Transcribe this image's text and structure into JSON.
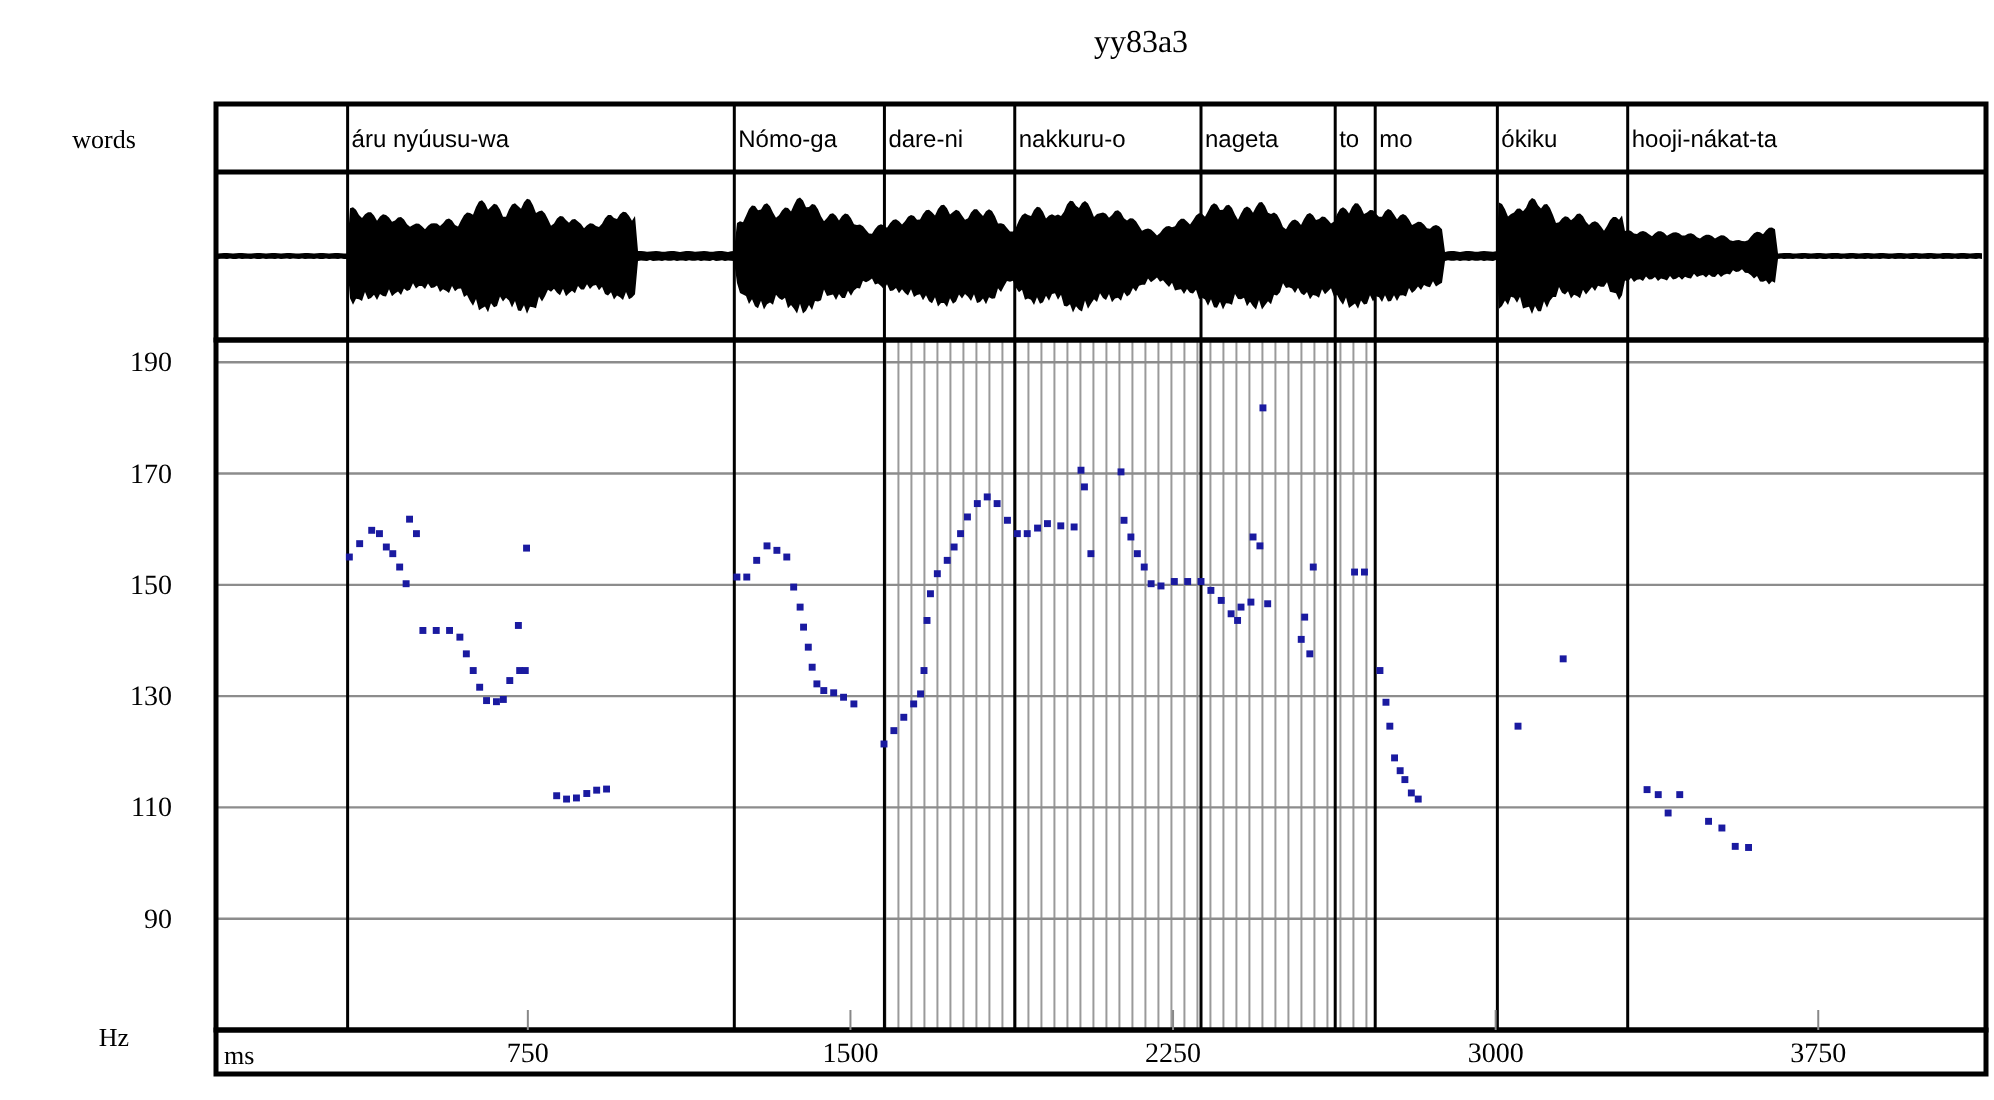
{
  "chart_data": {
    "type": "scatter",
    "title": "yy83a3",
    "xlabel": "ms",
    "ylabel": "Hz",
    "annotations": [
      "words"
    ],
    "xlim": [
      25,
      4140
    ],
    "ylim": [
      70,
      194
    ],
    "xticks": [
      750,
      1500,
      2250,
      3000,
      3750
    ],
    "yticks": [
      90,
      110,
      130,
      150,
      170,
      190
    ],
    "grid": "y",
    "marker": "square",
    "ref_lines": [
      {
        "axis": "x",
        "value": 331,
        "label": "áru nyúusu-wa"
      },
      {
        "axis": "x",
        "value": 1230,
        "label": "Nómo-ga"
      },
      {
        "axis": "x",
        "value": 1579,
        "label": "dare-ni"
      },
      {
        "axis": "x",
        "value": 1882,
        "label": "nakkuru-o"
      },
      {
        "axis": "x",
        "value": 2315,
        "label": "nageta"
      },
      {
        "axis": "x",
        "value": 2627,
        "label": "to"
      },
      {
        "axis": "x",
        "value": 2720,
        "label": "mo"
      },
      {
        "axis": "x",
        "value": 3004,
        "label": "ókiku"
      },
      {
        "axis": "x",
        "value": 3307,
        "label": "hooji-nákat-ta"
      }
    ],
    "bands": [
      {
        "axis": "x",
        "from": 1579,
        "to": 2720,
        "color": "#9a9a9a"
      }
    ],
    "series": [
      {
        "color": "#1a1aa0",
        "x": [
          335,
          359,
          387,
          405,
          421,
          436,
          452,
          467,
          475,
          491,
          506,
          537,
          568,
          592,
          607,
          623,
          638,
          654,
          677,
          693,
          708,
          728,
          731,
          744,
          747,
          817,
          840,
          863,
          887,
          910,
          933,
          1236,
          1259,
          1282,
          1306,
          1329,
          1352,
          1368,
          1383,
          1391,
          1402,
          1411,
          1422,
          1438,
          1461,
          1484,
          1508,
          1578,
          1601,
          1624,
          1647,
          1663,
          1671,
          1678,
          1686,
          1702,
          1725,
          1741,
          1756,
          1772,
          1795,
          1818,
          1841,
          1865,
          1888,
          1911,
          1935,
          1958,
          1989,
          2020,
          2036,
          2044,
          2059,
          2129,
          2136,
          2152,
          2167,
          2183,
          2199,
          2222,
          2253,
          2284,
          2315,
          2338,
          2362,
          2385,
          2400,
          2408,
          2431,
          2436,
          2452,
          2459,
          2470,
          2548,
          2556,
          2568,
          2576,
          2672,
          2695,
          2731,
          2745,
          2754,
          2765,
          2778,
          2789,
          2804,
          2820,
          3052,
          3157,
          3352,
          3378,
          3401,
          3428,
          3495,
          3526,
          3557,
          3588
        ],
        "values": [
          155,
          157.4,
          159.8,
          159.2,
          156.8,
          155.6,
          153.2,
          150.2,
          161.8,
          159.2,
          141.8,
          141.8,
          141.8,
          140.6,
          137.6,
          134.6,
          131.6,
          129.2,
          129,
          129.4,
          132.8,
          142.7,
          134.6,
          134.6,
          156.6,
          112.1,
          111.5,
          111.7,
          112.5,
          113.1,
          113.3,
          151.4,
          151.4,
          154.4,
          157,
          156.2,
          155,
          149.6,
          146,
          142.4,
          138.8,
          135.2,
          132.2,
          131,
          130.6,
          129.8,
          128.6,
          121.4,
          123.8,
          126.2,
          128.6,
          130.4,
          134.6,
          143.6,
          148.4,
          152,
          154.4,
          156.8,
          159.2,
          162.2,
          164.6,
          165.8,
          164.6,
          161.6,
          159.2,
          159.2,
          160.2,
          161,
          160.6,
          160.4,
          170.6,
          167.6,
          155.6,
          170.3,
          161.6,
          158.6,
          155.6,
          153.2,
          150.2,
          149.8,
          150.6,
          150.6,
          150.6,
          149,
          147.2,
          144.8,
          143.6,
          146,
          146.9,
          158.6,
          157,
          181.8,
          146.6,
          140.2,
          144.2,
          137.6,
          153.2,
          152.3,
          152.3,
          134.6,
          128.9,
          124.6,
          118.9,
          116.6,
          115,
          112.6,
          111.5,
          124.6,
          136.7,
          113.2,
          112.3,
          109,
          112.3,
          107.5,
          106.3,
          103,
          102.8
        ]
      }
    ]
  }
}
